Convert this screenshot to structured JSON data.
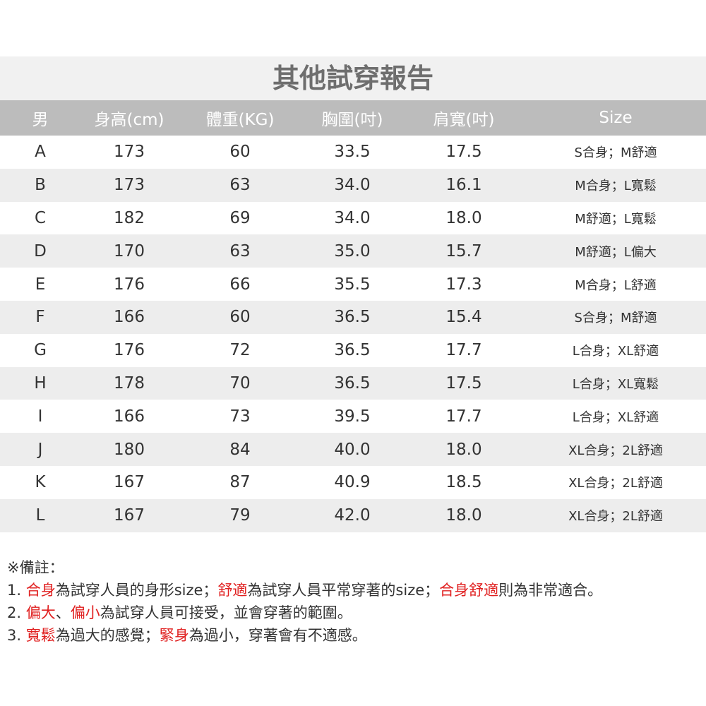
{
  "title": "其他試穿報告",
  "headers": [
    "男",
    "身高(cm)",
    "體重(KG)",
    "胸圍(吋)",
    "肩寬(吋)",
    "Size"
  ],
  "rows": [
    [
      "A",
      "173",
      "60",
      "33.5",
      "17.5",
      "S合身；M舒適"
    ],
    [
      "B",
      "173",
      "63",
      "34.0",
      "16.1",
      "M合身；L寬鬆"
    ],
    [
      "C",
      "182",
      "69",
      "34.0",
      "18.0",
      "M舒適；L寬鬆"
    ],
    [
      "D",
      "170",
      "63",
      "35.0",
      "15.7",
      "M舒適；L偏大"
    ],
    [
      "E",
      "176",
      "66",
      "35.5",
      "17.3",
      "M合身；L舒適"
    ],
    [
      "F",
      "166",
      "60",
      "36.5",
      "15.4",
      "S合身；M舒適"
    ],
    [
      "G",
      "176",
      "72",
      "36.5",
      "17.7",
      "L合身；XL舒適"
    ],
    [
      "H",
      "178",
      "70",
      "36.5",
      "17.5",
      "L合身；XL寬鬆"
    ],
    [
      "I",
      "166",
      "73",
      "39.5",
      "17.7",
      "L合身；XL舒適"
    ],
    [
      "J",
      "180",
      "84",
      "40.0",
      "18.0",
      "XL合身；2L舒適"
    ],
    [
      "K",
      "167",
      "87",
      "40.9",
      "18.5",
      "XL合身；2L舒適"
    ],
    [
      "L",
      "167",
      "79",
      "42.0",
      "18.0",
      "XL合身；2L舒適"
    ]
  ],
  "notes": {
    "heading": "※備註：",
    "lines": [
      [
        {
          "t": "1. "
        },
        {
          "t": "合身",
          "red": true
        },
        {
          "t": "為試穿人員的身形size；"
        },
        {
          "t": "舒適",
          "red": true
        },
        {
          "t": "為試穿人員平常穿著的size；"
        },
        {
          "t": "合身舒適",
          "red": true
        },
        {
          "t": "則為非常適合。"
        }
      ],
      [
        {
          "t": "2. "
        },
        {
          "t": "偏大",
          "red": true
        },
        {
          "t": "、"
        },
        {
          "t": "偏小",
          "red": true
        },
        {
          "t": "為試穿人員可接受，並會穿著的範圍。"
        }
      ],
      [
        {
          "t": "3. "
        },
        {
          "t": "寬鬆",
          "red": true
        },
        {
          "t": "為過大的感覺；"
        },
        {
          "t": "緊身",
          "red": true
        },
        {
          "t": "為過小，穿著會有不適感。"
        }
      ]
    ]
  },
  "colors": {
    "highlight": "#e02020",
    "header_bg": "#bcbcbc",
    "alt_row": "#ededed"
  }
}
